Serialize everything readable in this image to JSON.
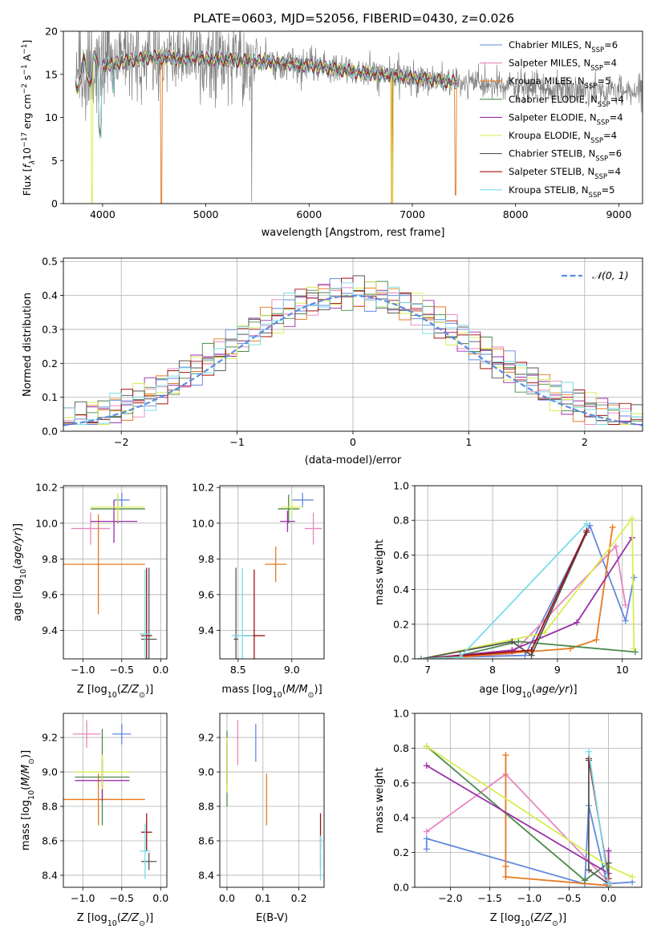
{
  "title": "PLATE=0603, MJD=52056, FIBERID=0430, z=0.026",
  "colors": {
    "ch_miles": "#6389dd",
    "sa_miles": "#e886c0",
    "kr_miles": "#e6791f",
    "ch_elodie": "#4c8a4c",
    "sa_elodie": "#9a2fa8",
    "kr_elodie": "#d8ee50",
    "ch_stelib": "#555555",
    "sa_stelib": "#a01212",
    "kr_stelib": "#78dde8",
    "normal": "#5b8ee0"
  },
  "legend": [
    {
      "key": "ch_miles",
      "text": "Chabrier MILES, N",
      "sub": "SSP",
      "tail": "=6"
    },
    {
      "key": "sa_miles",
      "text": "Salpeter MILES, N",
      "sub": "SSP",
      "tail": "=4"
    },
    {
      "key": "kr_miles",
      "text": "Kroupa MILES, N",
      "sub": "SSP",
      "tail": "=5"
    },
    {
      "key": "ch_elodie",
      "text": "Chabrier ELODIE, N",
      "sub": "SSP",
      "tail": "=4"
    },
    {
      "key": "sa_elodie",
      "text": "Salpeter ELODIE, N",
      "sub": "SSP",
      "tail": "=4"
    },
    {
      "key": "kr_elodie",
      "text": "Kroupa ELODIE, N",
      "sub": "SSP",
      "tail": "=4"
    },
    {
      "key": "ch_stelib",
      "text": "Chabrier STELIB, N",
      "sub": "SSP",
      "tail": "=6"
    },
    {
      "key": "sa_stelib",
      "text": "Salpeter STELIB, N",
      "sub": "SSP",
      "tail": "=4"
    },
    {
      "key": "kr_stelib",
      "text": "Kroupa STELIB, N",
      "sub": "SSP",
      "tail": "=5"
    }
  ],
  "chart_data": [
    {
      "id": "spectrum",
      "type": "line",
      "xlabel": "wavelength [Angstrom, rest frame]",
      "ylabel": "Flux [f_λ 10^-17 erg cm^-2 s^-1 A^-1]",
      "xlim": [
        3620,
        9230
      ],
      "ylim": [
        0,
        20
      ],
      "xticks": [
        4000,
        5000,
        6000,
        7000,
        8000,
        9000
      ],
      "yticks": [
        0,
        5,
        10,
        15,
        20
      ],
      "grid": false,
      "legend_position": "upper right",
      "continuum": [
        [
          3740,
          14.5
        ],
        [
          3850,
          15.5
        ],
        [
          4000,
          16.0
        ],
        [
          4200,
          16.5
        ],
        [
          4500,
          17.0
        ],
        [
          5000,
          16.8
        ],
        [
          5500,
          16.5
        ],
        [
          6000,
          16.0
        ],
        [
          6500,
          15.2
        ],
        [
          7000,
          14.6
        ],
        [
          7500,
          14.0
        ],
        [
          8000,
          13.5
        ],
        [
          8500,
          13.2
        ],
        [
          9000,
          13.1
        ],
        [
          9230,
          13.1
        ]
      ],
      "data_range": [
        3740,
        9230
      ],
      "model_range": [
        3740,
        7430
      ]
    },
    {
      "id": "residuals",
      "type": "line",
      "xlabel": "(data-model)/error",
      "ylabel": "Normed distribution",
      "xlim": [
        -2.5,
        2.5
      ],
      "ylim": [
        0,
        0.51
      ],
      "xticks": [
        -2,
        -1,
        0,
        1,
        2
      ],
      "yticks": [
        0.0,
        0.1,
        0.2,
        0.3,
        0.4,
        0.5
      ],
      "grid": true,
      "legend": "𝒩(0, 1)",
      "legend_position": "upper right",
      "bin_width": 0.1,
      "normal_mean": 0,
      "normal_sigma": 1
    },
    {
      "id": "age_vs_Z",
      "type": "scatter",
      "xlabel": "Z [log10(Z/Z⊙)]",
      "ylabel": "age [log10(age/yr)]",
      "xlim": [
        -1.25,
        0.08
      ],
      "ylim": [
        9.24,
        10.21
      ],
      "xticks": [
        -1.0,
        -0.5,
        0.0
      ],
      "yticks": [
        9.4,
        9.6,
        9.8,
        10.0,
        10.2
      ],
      "grid": true,
      "points": [
        {
          "key": "ch_miles",
          "x": -0.5,
          "xerr": 0.1,
          "y": 10.13,
          "yerr": 0.04
        },
        {
          "key": "sa_miles",
          "x": -0.9,
          "xerr": 0.25,
          "y": 9.97,
          "yerr": 0.09
        },
        {
          "key": "kr_miles",
          "x": -0.8,
          "xerr": 0.6,
          "y": 9.77,
          "yerr": 0.28
        },
        {
          "key": "ch_elodie",
          "x": -0.55,
          "xerr": 0.35,
          "y": 10.08,
          "yerr": 0.08
        },
        {
          "key": "sa_elodie",
          "x": -0.6,
          "xerr": 0.3,
          "y": 10.01,
          "yerr": 0.12
        },
        {
          "key": "kr_elodie",
          "x": -0.55,
          "xerr": 0.35,
          "y": 10.09,
          "yerr": 0.08
        },
        {
          "key": "ch_stelib",
          "x": -0.15,
          "xerr": 0.1,
          "y": 9.35,
          "yerr": 0.4
        },
        {
          "key": "sa_stelib",
          "x": -0.18,
          "xerr": 0.07,
          "y": 9.37,
          "yerr": 0.38
        },
        {
          "key": "kr_stelib",
          "x": -0.2,
          "xerr": 0.07,
          "y": 9.38,
          "yerr": 0.36
        }
      ]
    },
    {
      "id": "age_vs_mass",
      "type": "scatter",
      "xlabel": "mass [log10(M/M⊙)]",
      "ylabel": "",
      "xlim": [
        8.33,
        9.3
      ],
      "ylim": [
        9.24,
        10.21
      ],
      "xticks": [
        8.5,
        9.0
      ],
      "yticks": [
        9.4,
        9.6,
        9.8,
        10.0,
        10.2
      ],
      "grid": true,
      "points": [
        {
          "key": "ch_miles",
          "x": 9.1,
          "xerr": 0.1,
          "y": 10.13,
          "yerr": 0.04
        },
        {
          "key": "sa_miles",
          "x": 9.2,
          "xerr": 0.08,
          "y": 9.97,
          "yerr": 0.09
        },
        {
          "key": "kr_miles",
          "x": 8.85,
          "xerr": 0.1,
          "y": 9.77,
          "yerr": 0.1
        },
        {
          "key": "ch_elodie",
          "x": 8.97,
          "xerr": 0.1,
          "y": 10.08,
          "yerr": 0.08
        },
        {
          "key": "sa_elodie",
          "x": 8.96,
          "xerr": 0.07,
          "y": 10.01,
          "yerr": 0.06
        },
        {
          "key": "kr_elodie",
          "x": 9.0,
          "xerr": 0.1,
          "y": 10.09,
          "yerr": 0.05
        },
        {
          "key": "ch_stelib",
          "x": 8.48,
          "xerr": 0.02,
          "y": 9.35,
          "yerr": 0.4
        },
        {
          "key": "sa_stelib",
          "x": 8.65,
          "xerr": 0.1,
          "y": 9.37,
          "yerr": 0.37
        },
        {
          "key": "kr_stelib",
          "x": 8.54,
          "xerr": 0.1,
          "y": 9.37,
          "yerr": 0.38
        }
      ]
    },
    {
      "id": "mw_vs_age",
      "type": "line",
      "xlabel": "age [log10(age/yr)]",
      "ylabel": "mass weight",
      "xlim": [
        6.8,
        10.3
      ],
      "ylim": [
        0,
        1.0
      ],
      "xticks": [
        7,
        8,
        9,
        10
      ],
      "yticks": [
        0.0,
        0.2,
        0.4,
        0.6,
        0.8,
        1.0
      ],
      "grid": true,
      "series": [
        {
          "key": "ch_miles",
          "x": [
            6.9,
            7.5,
            8.5,
            9.5,
            10.05,
            10.18
          ],
          "y": [
            0.0,
            0.01,
            0.02,
            0.77,
            0.22,
            0.47
          ]
        },
        {
          "key": "sa_miles",
          "x": [
            6.9,
            8.3,
            9.9,
            10.05
          ],
          "y": [
            0.0,
            0.03,
            0.65,
            0.31
          ]
        },
        {
          "key": "kr_miles",
          "x": [
            6.9,
            7.5,
            9.2,
            9.6,
            9.85
          ],
          "y": [
            0.0,
            0.01,
            0.06,
            0.11,
            0.76
          ]
        },
        {
          "key": "ch_elodie",
          "x": [
            6.9,
            7.5,
            8.4,
            10.2
          ],
          "y": [
            0.0,
            0.02,
            0.1,
            0.04
          ]
        },
        {
          "key": "sa_elodie",
          "x": [
            6.9,
            8.3,
            9.3,
            10.15
          ],
          "y": [
            0.0,
            0.05,
            0.21,
            0.7
          ]
        },
        {
          "key": "kr_elodie",
          "x": [
            6.9,
            8.8,
            10.15,
            10.18
          ],
          "y": [
            0.0,
            0.15,
            0.81,
            0.06
          ]
        },
        {
          "key": "ch_stelib",
          "x": [
            6.9,
            8.3,
            8.6,
            9.45
          ],
          "y": [
            0.0,
            0.1,
            0.02,
            0.73
          ]
        },
        {
          "key": "sa_stelib",
          "x": [
            6.9,
            8.6,
            9.45
          ],
          "y": [
            0.0,
            0.05,
            0.74
          ]
        },
        {
          "key": "kr_stelib",
          "x": [
            6.9,
            7.5,
            9.45
          ],
          "y": [
            0.0,
            0.01,
            0.78
          ]
        }
      ]
    },
    {
      "id": "mass_vs_Z",
      "type": "scatter",
      "xlabel": "Z [log10(Z/Z⊙)]",
      "ylabel": "mass [log10(M/M⊙)]",
      "xlim": [
        -1.25,
        0.08
      ],
      "ylim": [
        8.33,
        9.34
      ],
      "xticks": [
        -1.0,
        -0.5,
        0.0
      ],
      "yticks": [
        8.4,
        8.6,
        8.8,
        9.0,
        9.2
      ],
      "grid": true,
      "points": [
        {
          "key": "ch_miles",
          "x": -0.5,
          "xerr": 0.12,
          "y": 9.22,
          "yerr": 0.06
        },
        {
          "key": "sa_miles",
          "x": -0.95,
          "xerr": 0.18,
          "y": 9.22,
          "yerr": 0.08
        },
        {
          "key": "kr_miles",
          "x": -0.8,
          "xerr": 0.6,
          "y": 8.84,
          "yerr": 0.15
        },
        {
          "key": "ch_elodie",
          "x": -0.75,
          "xerr": 0.35,
          "y": 8.97,
          "yerr": 0.28
        },
        {
          "key": "sa_elodie",
          "x": -0.75,
          "xerr": 0.35,
          "y": 8.95,
          "yerr": 0.12
        },
        {
          "key": "kr_elodie",
          "x": -0.75,
          "xerr": 0.35,
          "y": 9.0,
          "yerr": 0.1
        },
        {
          "key": "ch_stelib",
          "x": -0.15,
          "xerr": 0.1,
          "y": 8.48,
          "yerr": 0.05
        },
        {
          "key": "sa_stelib",
          "x": -0.18,
          "xerr": 0.07,
          "y": 8.65,
          "yerr": 0.11
        },
        {
          "key": "kr_stelib",
          "x": -0.2,
          "xerr": 0.07,
          "y": 8.54,
          "yerr": 0.16
        }
      ]
    },
    {
      "id": "mass_vs_ebv",
      "type": "scatter",
      "xlabel": "E(B-V)",
      "ylabel": "",
      "xlim": [
        -0.02,
        0.27
      ],
      "ylim": [
        8.33,
        9.34
      ],
      "xticks": [
        0.0,
        0.1,
        0.2
      ],
      "yticks": [
        8.4,
        8.6,
        8.8,
        9.0,
        9.2
      ],
      "grid": true,
      "points": [
        {
          "key": "ch_miles",
          "x": 0.08,
          "y": 9.17,
          "yerr": 0.11
        },
        {
          "key": "sa_miles",
          "x": 0.03,
          "y": 9.17,
          "yerr": 0.13
        },
        {
          "key": "kr_miles",
          "x": 0.11,
          "y": 8.84,
          "yerr": 0.15
        },
        {
          "key": "ch_elodie",
          "x": 0.0,
          "y": 9.02,
          "yerr": 0.22
        },
        {
          "key": "sa_elodie",
          "x": 0.0,
          "y": 9.05,
          "yerr": 0.12
        },
        {
          "key": "kr_elodie",
          "x": 0.0,
          "y": 9.04,
          "yerr": 0.16
        },
        {
          "key": "ch_stelib",
          "x": 0.26,
          "y": 8.48,
          "yerr": 0.05
        },
        {
          "key": "sa_stelib",
          "x": 0.26,
          "y": 8.65,
          "yerr": 0.11
        },
        {
          "key": "kr_stelib",
          "x": 0.26,
          "y": 8.5,
          "yerr": 0.13
        }
      ]
    },
    {
      "id": "mw_vs_Z",
      "type": "line",
      "xlabel": "Z [log10(Z/Z⊙)]",
      "ylabel": "mass weight",
      "xlim": [
        -2.45,
        0.42
      ],
      "ylim": [
        0,
        1.0
      ],
      "xticks": [
        -2.0,
        -1.5,
        -1.0,
        -0.5,
        0.0
      ],
      "yticks": [
        0.0,
        0.2,
        0.4,
        0.6,
        0.8,
        1.0
      ],
      "grid": true,
      "series": [
        {
          "key": "ch_miles",
          "x": [
            -2.3,
            -2.3,
            -0.3,
            -0.25,
            -0.02,
            0.3
          ],
          "y": [
            0.22,
            0.28,
            0.02,
            0.47,
            0.02,
            0.03
          ]
        },
        {
          "key": "sa_miles",
          "x": [
            -2.3,
            -1.3,
            0.0
          ],
          "y": [
            0.32,
            0.65,
            0.03
          ]
        },
        {
          "key": "kr_miles",
          "x": [
            -1.3,
            -1.3,
            -1.3,
            0.0
          ],
          "y": [
            0.76,
            0.12,
            0.06,
            0.01
          ]
        },
        {
          "key": "ch_elodie",
          "x": [
            -2.3,
            -0.3,
            0.0
          ],
          "y": [
            0.81,
            0.04,
            0.14
          ]
        },
        {
          "key": "sa_elodie",
          "x": [
            -2.3,
            0.0,
            0.0
          ],
          "y": [
            0.7,
            0.08,
            0.21
          ]
        },
        {
          "key": "kr_elodie",
          "x": [
            -2.3,
            0.0,
            0.3
          ],
          "y": [
            0.81,
            0.12,
            0.06
          ]
        },
        {
          "key": "ch_stelib",
          "x": [
            -0.25,
            -0.25,
            0.0,
            0.0
          ],
          "y": [
            0.73,
            0.1,
            0.02,
            0.14
          ]
        },
        {
          "key": "sa_stelib",
          "x": [
            -0.25,
            0.0
          ],
          "y": [
            0.74,
            0.05
          ]
        },
        {
          "key": "kr_stelib",
          "x": [
            -0.25,
            0.0
          ],
          "y": [
            0.78,
            0.02
          ]
        }
      ]
    }
  ]
}
